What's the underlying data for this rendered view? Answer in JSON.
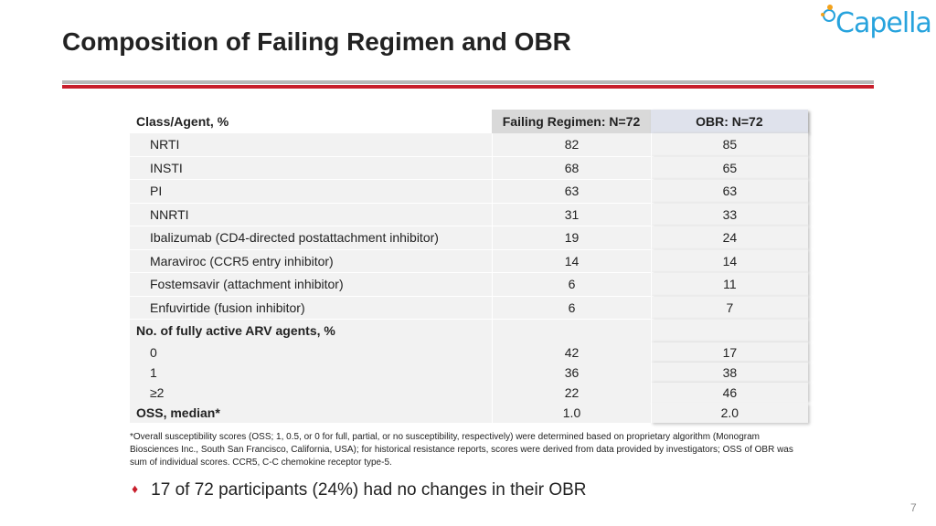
{
  "slide": {
    "title": "Composition of Failing Regimen and OBR",
    "logo_text": "Capella",
    "page_number": "7",
    "accent_color": "#c81e2b",
    "logo_color": "#27a3dd"
  },
  "table": {
    "headers": {
      "col1": "Class/Agent, %",
      "col2": "Failing Regimen: N=72",
      "col3": "OBR: N=72"
    },
    "rows": [
      {
        "label": "NRTI",
        "failing": "82",
        "obr": "85"
      },
      {
        "label": "INSTI",
        "failing": "68",
        "obr": "65"
      },
      {
        "label": "PI",
        "failing": "63",
        "obr": "63"
      },
      {
        "label": "NNRTI",
        "failing": "31",
        "obr": "33"
      },
      {
        "label": "Ibalizumab (CD4-directed postattachment inhibitor)",
        "failing": "19",
        "obr": "24"
      },
      {
        "label": "Maraviroc (CCR5 entry inhibitor)",
        "failing": "14",
        "obr": "14"
      },
      {
        "label": "Fostemsavir (attachment inhibitor)",
        "failing": "6",
        "obr": "11"
      },
      {
        "label": "Enfuvirtide (fusion inhibitor)",
        "failing": "6",
        "obr": "7"
      }
    ],
    "section_label": "No. of fully active ARV agents, %",
    "active_rows": [
      {
        "label": "0",
        "failing": "42",
        "obr": "17"
      },
      {
        "label": "1",
        "failing": "36",
        "obr": "38"
      },
      {
        "label": "≥2",
        "failing": "22",
        "obr": "46"
      }
    ],
    "oss": {
      "label": "OSS, median*",
      "failing": "1.0",
      "obr": "2.0"
    }
  },
  "footnote": "*Overall susceptibility scores (OSS; 1, 0.5, or 0 for full, partial, or no susceptibility, respectively) were determined based on proprietary algorithm (Monogram Biosciences Inc., South San Francisco, California, USA); for historical resistance reports, scores were derived from data provided by investigators; OSS of OBR was sum of individual scores. CCR5, C-C chemokine receptor type-5.",
  "bullet": {
    "icon": "diamond-bullet-icon",
    "text": "17 of 72 participants (24%) had no changes in their OBR"
  }
}
